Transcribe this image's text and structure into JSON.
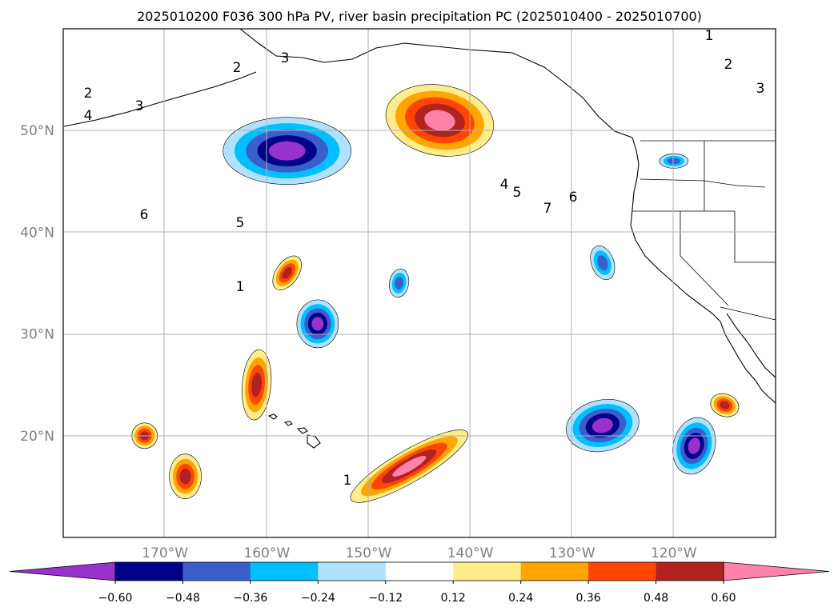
{
  "chart_data": {
    "type": "contour_map",
    "title": "2025010200 F036 300 hPa PV, river basin precipitation PC (2025010400 - 2025010700)",
    "lon_range": [
      -180,
      -110
    ],
    "lat_range": [
      10,
      60
    ],
    "lon_ticks": [
      -170,
      -160,
      -150,
      -140,
      -130,
      -120
    ],
    "lon_tick_labels": [
      "170°W",
      "160°W",
      "150°W",
      "140°W",
      "130°W",
      "120°W"
    ],
    "lat_ticks": [
      20,
      30,
      40,
      50
    ],
    "lat_tick_labels": [
      "20°N",
      "30°N",
      "40°N",
      "50°N"
    ],
    "grid": true,
    "colorbar": {
      "orientation": "horizontal",
      "extend": "both",
      "boundaries": [
        -0.6,
        -0.48,
        -0.36,
        -0.24,
        -0.12,
        0.12,
        0.24,
        0.36,
        0.48,
        0.6
      ],
      "tick_labels": [
        "−0.60",
        "−0.48",
        "−0.36",
        "−0.24",
        "−0.12",
        "0.12",
        "0.24",
        "0.36",
        "0.48",
        "0.60"
      ],
      "colors": [
        "#9932cc",
        "#00008b",
        "#3a5fcd",
        "#00bfff",
        "#b0e2ff",
        "#ffffff",
        "#ffec8b",
        "#ffa500",
        "#ff4500",
        "#b22222",
        "#ff82ab"
      ]
    },
    "pv_contour_labels": [
      "1",
      "2",
      "3",
      "4",
      "5",
      "6",
      "7"
    ],
    "pv_contour_color": "#000000",
    "precip_pc_anomalies": [
      {
        "sign": "negative",
        "peak": -0.55,
        "center_lon": -158,
        "center_lat": 48
      },
      {
        "sign": "negative",
        "peak": -0.55,
        "center_lon": -155,
        "center_lat": 31
      },
      {
        "sign": "negative",
        "peak": -0.55,
        "center_lon": -127,
        "center_lat": 21
      },
      {
        "sign": "negative",
        "peak": -0.5,
        "center_lon": -118,
        "center_lat": 19
      },
      {
        "sign": "negative",
        "peak": -0.3,
        "center_lon": -127,
        "center_lat": 37
      },
      {
        "sign": "negative",
        "peak": -0.3,
        "center_lon": -120,
        "center_lat": 47
      },
      {
        "sign": "negative",
        "peak": -0.3,
        "center_lon": -147,
        "center_lat": 35
      },
      {
        "sign": "positive",
        "peak": 0.62,
        "center_lon": -143,
        "center_lat": 51
      },
      {
        "sign": "positive",
        "peak": 0.5,
        "center_lon": -146,
        "center_lat": 17
      },
      {
        "sign": "positive",
        "peak": 0.4,
        "center_lon": -161,
        "center_lat": 25
      },
      {
        "sign": "positive",
        "peak": 0.4,
        "center_lon": -168,
        "center_lat": 16
      },
      {
        "sign": "positive",
        "peak": 0.4,
        "center_lon": -172,
        "center_lat": 20
      },
      {
        "sign": "positive",
        "peak": 0.4,
        "center_lon": -158,
        "center_lat": 36
      },
      {
        "sign": "positive",
        "peak": 0.4,
        "center_lon": -115,
        "center_lat": 23
      }
    ]
  }
}
